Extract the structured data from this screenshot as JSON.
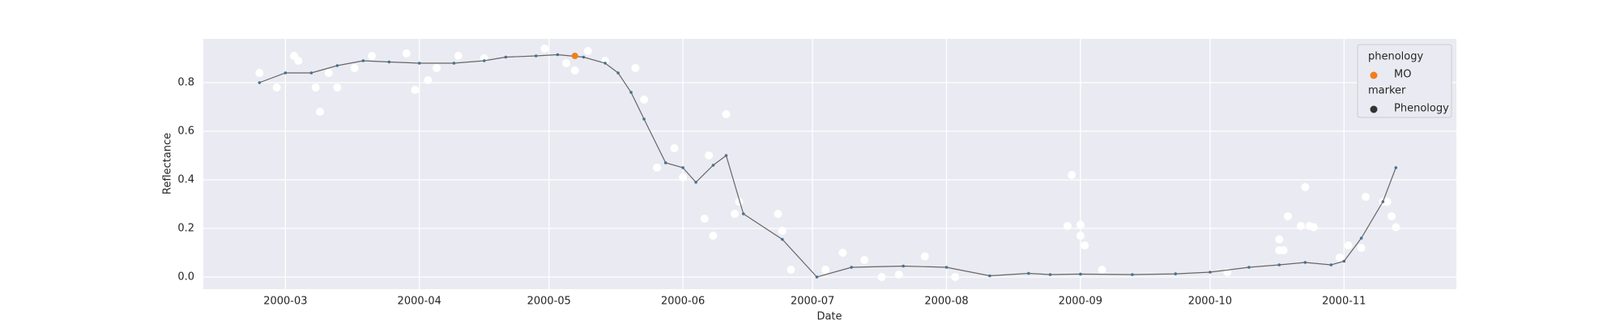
{
  "chart_data": {
    "type": "line",
    "xlabel": "Date",
    "ylabel": "Reflectance",
    "xlim": [
      "2000-02-11",
      "2000-11-27"
    ],
    "xticks": [
      {
        "value": "2000-03-01",
        "label": "2000-03"
      },
      {
        "value": "2000-04-01",
        "label": "2000-04"
      },
      {
        "value": "2000-05-01",
        "label": "2000-05"
      },
      {
        "value": "2000-06-01",
        "label": "2000-06"
      },
      {
        "value": "2000-07-01",
        "label": "2000-07"
      },
      {
        "value": "2000-08-01",
        "label": "2000-08"
      },
      {
        "value": "2000-09-01",
        "label": "2000-09"
      },
      {
        "value": "2000-10-01",
        "label": "2000-10"
      },
      {
        "value": "2000-11-01",
        "label": "2000-11"
      }
    ],
    "ylim": [
      -0.05,
      0.98
    ],
    "yticks": [
      {
        "value": 0,
        "label": "0.0"
      },
      0.2,
      0.4,
      0.6,
      0.8
    ],
    "grid": true,
    "background": "#eaeaf2",
    "observations": {
      "color": "#ffffff",
      "x": [
        "2000-02-24",
        "2000-02-28",
        "2000-03-03",
        "2000-03-04",
        "2000-03-08",
        "2000-03-09",
        "2000-03-11",
        "2000-03-13",
        "2000-03-17",
        "2000-03-21",
        "2000-03-29",
        "2000-03-31",
        "2000-04-03",
        "2000-04-05",
        "2000-04-10",
        "2000-04-16",
        "2000-04-30",
        "2000-05-05",
        "2000-05-07",
        "2000-05-10",
        "2000-05-14",
        "2000-05-21",
        "2000-05-23",
        "2000-05-26",
        "2000-05-30",
        "2000-06-01",
        "2000-06-06",
        "2000-06-07",
        "2000-06-08",
        "2000-06-11",
        "2000-06-13",
        "2000-06-14",
        "2000-06-23",
        "2000-06-24",
        "2000-06-26",
        "2000-07-04",
        "2000-07-08",
        "2000-07-13",
        "2000-07-17",
        "2000-07-21",
        "2000-07-27",
        "2000-08-03",
        "2000-08-29",
        "2000-08-30",
        "2000-09-01",
        "2000-09-01",
        "2000-09-02",
        "2000-09-06",
        "2000-10-05",
        "2000-10-17",
        "2000-10-17",
        "2000-10-18",
        "2000-10-19",
        "2000-10-22",
        "2000-10-23",
        "2000-10-24",
        "2000-10-25",
        "2000-10-31",
        "2000-11-02",
        "2000-11-05",
        "2000-11-06",
        "2000-11-10",
        "2000-11-11",
        "2000-11-12",
        "2000-11-13"
      ],
      "values": [
        0.84,
        0.78,
        0.91,
        0.89,
        0.78,
        0.68,
        0.84,
        0.78,
        0.86,
        0.91,
        0.92,
        0.77,
        0.81,
        0.86,
        0.91,
        0.9,
        0.94,
        0.88,
        0.85,
        0.93,
        0.89,
        0.86,
        0.73,
        0.45,
        0.53,
        0.41,
        0.24,
        0.5,
        0.17,
        0.67,
        0.26,
        0.31,
        0.26,
        0.19,
        0.03,
        0.03,
        0.1,
        0.07,
        0.0,
        0.01,
        0.085,
        0.0,
        0.21,
        0.42,
        0.17,
        0.215,
        0.13,
        0.03,
        0.02,
        0.11,
        0.155,
        0.11,
        0.25,
        0.21,
        0.37,
        0.21,
        0.205,
        0.08,
        0.13,
        0.12,
        0.33,
        0.31,
        0.31,
        0.25,
        0.205
      ]
    },
    "phenology_curve": {
      "color": "#666666",
      "marker_color": "#4a6f8a",
      "x": [
        "2000-02-24",
        "2000-03-01",
        "2000-03-07",
        "2000-03-13",
        "2000-03-19",
        "2000-03-25",
        "2000-04-01",
        "2000-04-09",
        "2000-04-16",
        "2000-04-21",
        "2000-04-28",
        "2000-05-03",
        "2000-05-09",
        "2000-05-14",
        "2000-05-17",
        "2000-05-20",
        "2000-05-23",
        "2000-05-28",
        "2000-06-01",
        "2000-06-04",
        "2000-06-08",
        "2000-06-11",
        "2000-06-15",
        "2000-06-24",
        "2000-07-02",
        "2000-07-10",
        "2000-07-22",
        "2000-08-01",
        "2000-08-11",
        "2000-08-20",
        "2000-08-25",
        "2000-09-01",
        "2000-09-13",
        "2000-09-23",
        "2000-10-01",
        "2000-10-10",
        "2000-10-17",
        "2000-10-23",
        "2000-10-29",
        "2000-11-01",
        "2000-11-05",
        "2000-11-10",
        "2000-11-13"
      ],
      "values": [
        0.8,
        0.84,
        0.84,
        0.87,
        0.89,
        0.885,
        0.88,
        0.88,
        0.89,
        0.905,
        0.91,
        0.915,
        0.905,
        0.88,
        0.84,
        0.76,
        0.65,
        0.47,
        0.45,
        0.39,
        0.46,
        0.5,
        0.26,
        0.155,
        0.0,
        0.04,
        0.045,
        0.04,
        0.005,
        0.015,
        0.01,
        0.012,
        0.01,
        0.013,
        0.02,
        0.04,
        0.05,
        0.06,
        0.05,
        0.065,
        0.16,
        0.31,
        0.45
      ]
    },
    "mo_points": {
      "x": [
        "2000-05-07"
      ],
      "values": [
        0.91
      ]
    },
    "legend": {
      "corner": "upper right",
      "groups": [
        {
          "title": "phenology",
          "entries": [
            {
              "name": "MO",
              "color": "#f07f1e"
            }
          ]
        },
        {
          "title": "marker",
          "entries": [
            {
              "name": "Phenology",
              "color": "#333333"
            }
          ]
        }
      ]
    }
  }
}
